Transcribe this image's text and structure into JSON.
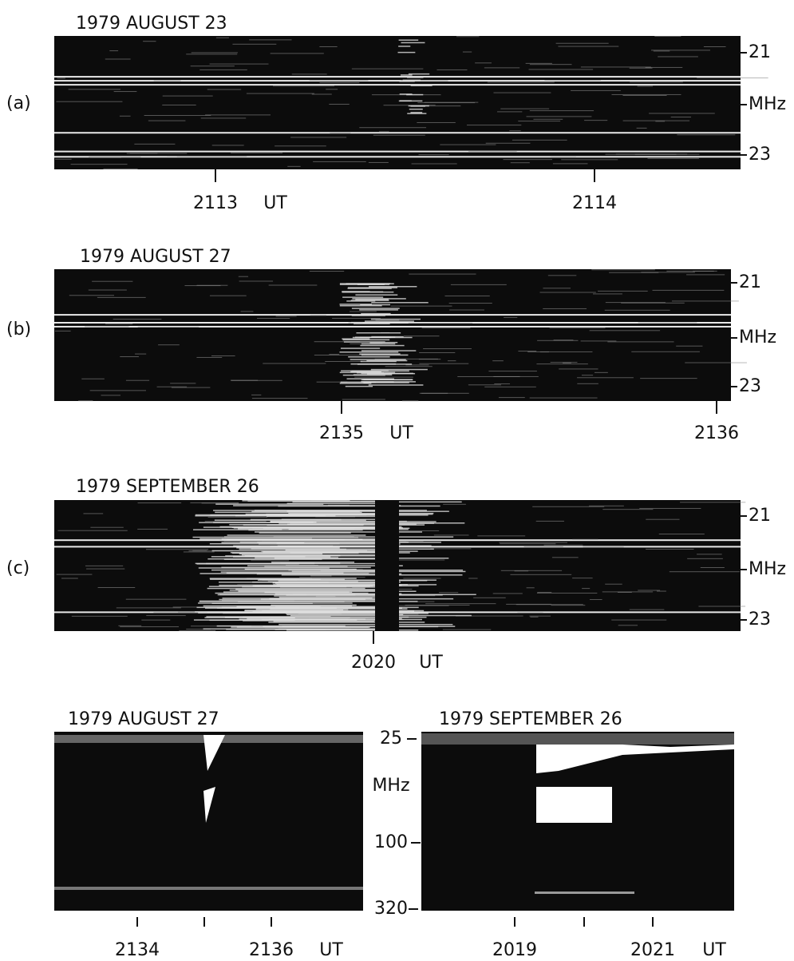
{
  "panels": [
    {
      "label": "(a)",
      "title": "1979 AUGUST 23",
      "y_ticks": [
        "21",
        "23"
      ],
      "y_label": "MHz",
      "x_ticks": [
        "2113",
        "2114"
      ],
      "x_unit": "UT"
    },
    {
      "label": "(b)",
      "title": "1979 AUGUST 27",
      "y_ticks": [
        "21",
        "23"
      ],
      "y_label": "MHz",
      "x_ticks": [
        "2135",
        "2136"
      ],
      "x_unit": "UT"
    },
    {
      "label": "(c)",
      "title": "1979 SEPTEMBER 26",
      "y_ticks": [
        "21",
        "23"
      ],
      "y_label": "MHz",
      "x_ticks": [
        "2020"
      ],
      "x_unit": "UT"
    }
  ],
  "bottom_panels": [
    {
      "title": "1979 AUGUST 27",
      "x_ticks": [
        "2134",
        "2136"
      ],
      "x_unit": "UT"
    },
    {
      "title": "1979 SEPTEMBER 26",
      "x_ticks": [
        "2019",
        "2021"
      ],
      "x_unit": "UT"
    }
  ],
  "shared_axis": {
    "ticks": [
      "25",
      "100",
      "320"
    ],
    "label": "MHz"
  }
}
